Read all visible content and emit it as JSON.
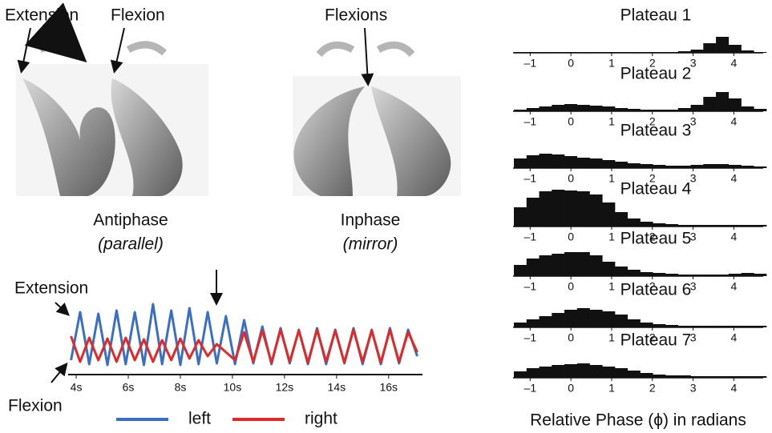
{
  "labels": {
    "extension": "Extension",
    "flexion": "Flexion",
    "flexions": "Flexions",
    "antiphase": "Antiphase",
    "antiphase_sub": "(parallel)",
    "inphase": "Inphase",
    "inphase_sub": "(mirror)",
    "phase_axis": "Relative Phase (ϕ) in radians"
  },
  "chart_data": [
    {
      "type": "line",
      "annotations": [
        "Extension",
        "Flexion"
      ],
      "x": [
        3.8,
        4.15,
        4.5,
        4.85,
        5.2,
        5.55,
        5.9,
        6.25,
        6.6,
        6.95,
        7.3,
        7.65,
        8.0,
        8.35,
        8.7,
        9.05,
        9.4,
        9.75,
        10.1,
        10.45,
        10.8,
        11.15,
        11.5,
        11.85,
        12.2,
        12.55,
        12.9,
        13.25,
        13.6,
        13.95,
        14.3,
        14.65,
        15.0,
        15.35,
        15.7,
        16.05,
        16.4,
        16.75,
        17.1
      ],
      "series": [
        {
          "name": "left",
          "color": "#3a6fc4",
          "values": [
            20,
            80,
            15,
            78,
            14,
            82,
            15,
            80,
            14,
            90,
            15,
            82,
            14,
            85,
            15,
            80,
            16,
            75,
            15,
            70,
            16,
            62,
            15,
            60,
            16,
            58,
            15,
            60,
            15,
            58,
            16,
            60,
            15,
            58,
            15,
            60,
            16,
            58,
            25
          ]
        },
        {
          "name": "right",
          "color": "#e02a2a",
          "values": [
            50,
            18,
            48,
            20,
            47,
            18,
            48,
            20,
            46,
            18,
            45,
            20,
            47,
            22,
            45,
            25,
            40,
            30,
            20,
            55,
            18,
            57,
            17,
            58,
            18,
            57,
            17,
            58,
            18,
            57,
            17,
            58,
            18,
            57,
            17,
            58,
            18,
            55,
            30
          ]
        }
      ],
      "xlim": [
        3.69,
        17.3
      ],
      "ylim": [
        0,
        100
      ],
      "xticks": [
        {
          "value": 4,
          "label": "4s"
        },
        {
          "value": 6,
          "label": "6s"
        },
        {
          "value": 8,
          "label": "8s"
        },
        {
          "value": 10,
          "label": "10s"
        },
        {
          "value": 12,
          "label": "12s"
        },
        {
          "value": 14,
          "label": "14s"
        },
        {
          "value": 16,
          "label": "16s"
        }
      ]
    },
    {
      "type": "histogram",
      "title": "Plateau 1",
      "color": "#111111",
      "bins": [
        -1.4,
        -1.09,
        -0.78,
        -0.47,
        -0.16,
        0.15,
        0.46,
        0.77,
        1.08,
        1.39,
        1.7,
        2.01,
        2.32,
        2.63,
        2.94,
        3.25,
        3.56,
        3.87,
        4.18,
        4.49,
        4.8
      ],
      "counts": [
        1,
        1,
        1,
        1,
        1,
        1,
        1,
        1,
        1,
        1,
        1,
        1,
        1,
        2,
        4,
        12,
        20,
        10,
        3,
        1
      ],
      "xlim": [
        -1.42,
        4.72
      ],
      "ylim": [
        0,
        50
      ],
      "xticks": [
        {
          "value": -1,
          "label": "–1"
        },
        0,
        1,
        2,
        3,
        4
      ]
    },
    {
      "type": "histogram",
      "title": "Plateau 2",
      "color": "#111111",
      "bins": [
        -1.4,
        -1.09,
        -0.78,
        -0.47,
        -0.16,
        0.15,
        0.46,
        0.77,
        1.08,
        1.39,
        1.7,
        2.01,
        2.32,
        2.63,
        2.94,
        3.25,
        3.56,
        3.87,
        4.18,
        4.49,
        4.8
      ],
      "counts": [
        2,
        4,
        6,
        8,
        9,
        8,
        7,
        6,
        4,
        3,
        2,
        2,
        2,
        4,
        8,
        18,
        24,
        16,
        6,
        3
      ],
      "xlim": [
        -1.42,
        4.72
      ],
      "ylim": [
        0,
        50
      ],
      "xticks": [
        {
          "value": -1,
          "label": "–1"
        },
        0,
        1,
        2,
        3,
        4
      ]
    },
    {
      "type": "histogram",
      "title": "Plateau 3",
      "color": "#111111",
      "bins": [
        -1.4,
        -1.09,
        -0.78,
        -0.47,
        -0.16,
        0.15,
        0.46,
        0.77,
        1.08,
        1.39,
        1.7,
        2.01,
        2.32,
        2.63,
        2.94,
        3.25,
        3.56,
        3.87,
        4.18,
        4.49,
        4.8
      ],
      "counts": [
        12,
        16,
        18,
        17,
        15,
        13,
        12,
        10,
        8,
        6,
        5,
        4,
        3,
        3,
        4,
        5,
        5,
        4,
        3,
        2
      ],
      "xlim": [
        -1.42,
        4.72
      ],
      "ylim": [
        0,
        50
      ],
      "xticks": [
        {
          "value": -1,
          "label": "–1"
        },
        0,
        1,
        2,
        3,
        4
      ]
    },
    {
      "type": "histogram",
      "title": "Plateau 4",
      "color": "#111111",
      "bins": [
        -1.4,
        -1.09,
        -0.78,
        -0.47,
        -0.16,
        0.15,
        0.46,
        0.77,
        1.08,
        1.39,
        1.7,
        2.01,
        2.32,
        2.63,
        2.94,
        3.25,
        3.56,
        3.87,
        4.18,
        4.49,
        4.8
      ],
      "counts": [
        24,
        36,
        44,
        46,
        45,
        44,
        40,
        30,
        18,
        10,
        6,
        4,
        3,
        2,
        2,
        2,
        2,
        2,
        2,
        2
      ],
      "xlim": [
        -1.42,
        4.72
      ],
      "ylim": [
        0,
        50
      ],
      "xticks": [
        {
          "value": -1,
          "label": "–1"
        },
        0,
        1,
        2,
        3,
        4
      ]
    },
    {
      "type": "histogram",
      "title": "Plateau 5",
      "color": "#111111",
      "bins": [
        -1.4,
        -1.09,
        -0.78,
        -0.47,
        -0.16,
        0.15,
        0.46,
        0.77,
        1.08,
        1.39,
        1.7,
        2.01,
        2.32,
        2.63,
        2.94,
        3.25,
        3.56,
        3.87,
        4.18,
        4.49,
        4.8
      ],
      "counts": [
        14,
        22,
        26,
        28,
        30,
        30,
        26,
        18,
        12,
        8,
        5,
        4,
        3,
        2,
        2,
        2,
        2,
        3,
        4,
        3
      ],
      "xlim": [
        -1.42,
        4.72
      ],
      "ylim": [
        0,
        50
      ],
      "xticks": [
        {
          "value": -1,
          "label": "–1"
        },
        0,
        1,
        2,
        3,
        4
      ]
    },
    {
      "type": "histogram",
      "title": "Plateau 6",
      "color": "#111111",
      "bins": [
        -1.4,
        -1.09,
        -0.78,
        -0.47,
        -0.16,
        0.15,
        0.46,
        0.77,
        1.08,
        1.39,
        1.7,
        2.01,
        2.32,
        2.63,
        2.94,
        3.25,
        3.56,
        3.87,
        4.18,
        4.49,
        4.8
      ],
      "counts": [
        6,
        10,
        14,
        18,
        22,
        24,
        22,
        20,
        16,
        10,
        6,
        4,
        3,
        2,
        2,
        2,
        2,
        2,
        2,
        2
      ],
      "xlim": [
        -1.42,
        4.72
      ],
      "ylim": [
        0,
        50
      ],
      "xticks": [
        {
          "value": -1,
          "label": "–1"
        },
        0,
        1,
        2,
        3,
        4
      ]
    },
    {
      "type": "histogram",
      "title": "Plateau 7",
      "color": "#111111",
      "bins": [
        -1.4,
        -1.09,
        -0.78,
        -0.47,
        -0.16,
        0.15,
        0.46,
        0.77,
        1.08,
        1.39,
        1.7,
        2.01,
        2.32,
        2.63,
        2.94,
        3.25,
        3.56,
        3.87,
        4.18,
        4.49,
        4.8
      ],
      "counts": [
        8,
        12,
        14,
        16,
        17,
        18,
        16,
        14,
        12,
        9,
        6,
        4,
        3,
        3,
        2,
        2,
        2,
        2,
        2,
        2
      ],
      "xlim": [
        -1.42,
        4.72
      ],
      "ylim": [
        0,
        50
      ],
      "xticks": [
        {
          "value": -1,
          "label": "–1"
        },
        0,
        1,
        2,
        3,
        4
      ]
    }
  ]
}
